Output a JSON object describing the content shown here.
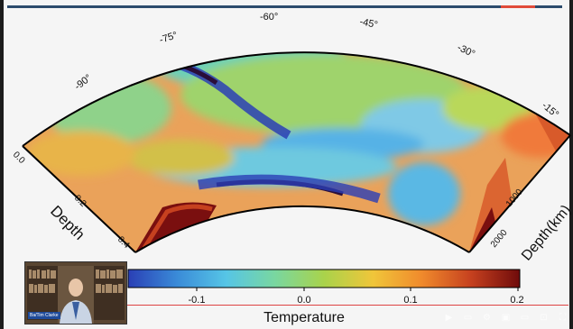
{
  "figure": {
    "longitude_ticks": [
      "-90°",
      "-75°",
      "-60°",
      "-45°",
      "-30°",
      "-15°"
    ],
    "depth_left_label": "Depth",
    "depth_left_ticks": [
      "0.0",
      "0.2",
      "0.4"
    ],
    "depth_right_label": "Depth(km)",
    "depth_right_ticks": [
      "1000",
      "2000"
    ],
    "colorbar": {
      "title": "Temperature",
      "ticks": [
        "-0.1",
        "0.0",
        "0.1",
        "0.2"
      ],
      "colors": [
        "#2a3fb5",
        "#3a8bd8",
        "#56c5e6",
        "#79d7a0",
        "#a9d34b",
        "#f0c63a",
        "#f08a2c",
        "#c6411f",
        "#6f0b0b"
      ]
    }
  },
  "webcam": {
    "name_tag": "Ba/Tim Clarke"
  },
  "controls": {
    "icons": [
      "play-icon",
      "subtitles-icon",
      "settings-icon",
      "miniplayer-icon",
      "theater-icon",
      "cast-icon",
      "fullscreen-icon"
    ]
  }
}
